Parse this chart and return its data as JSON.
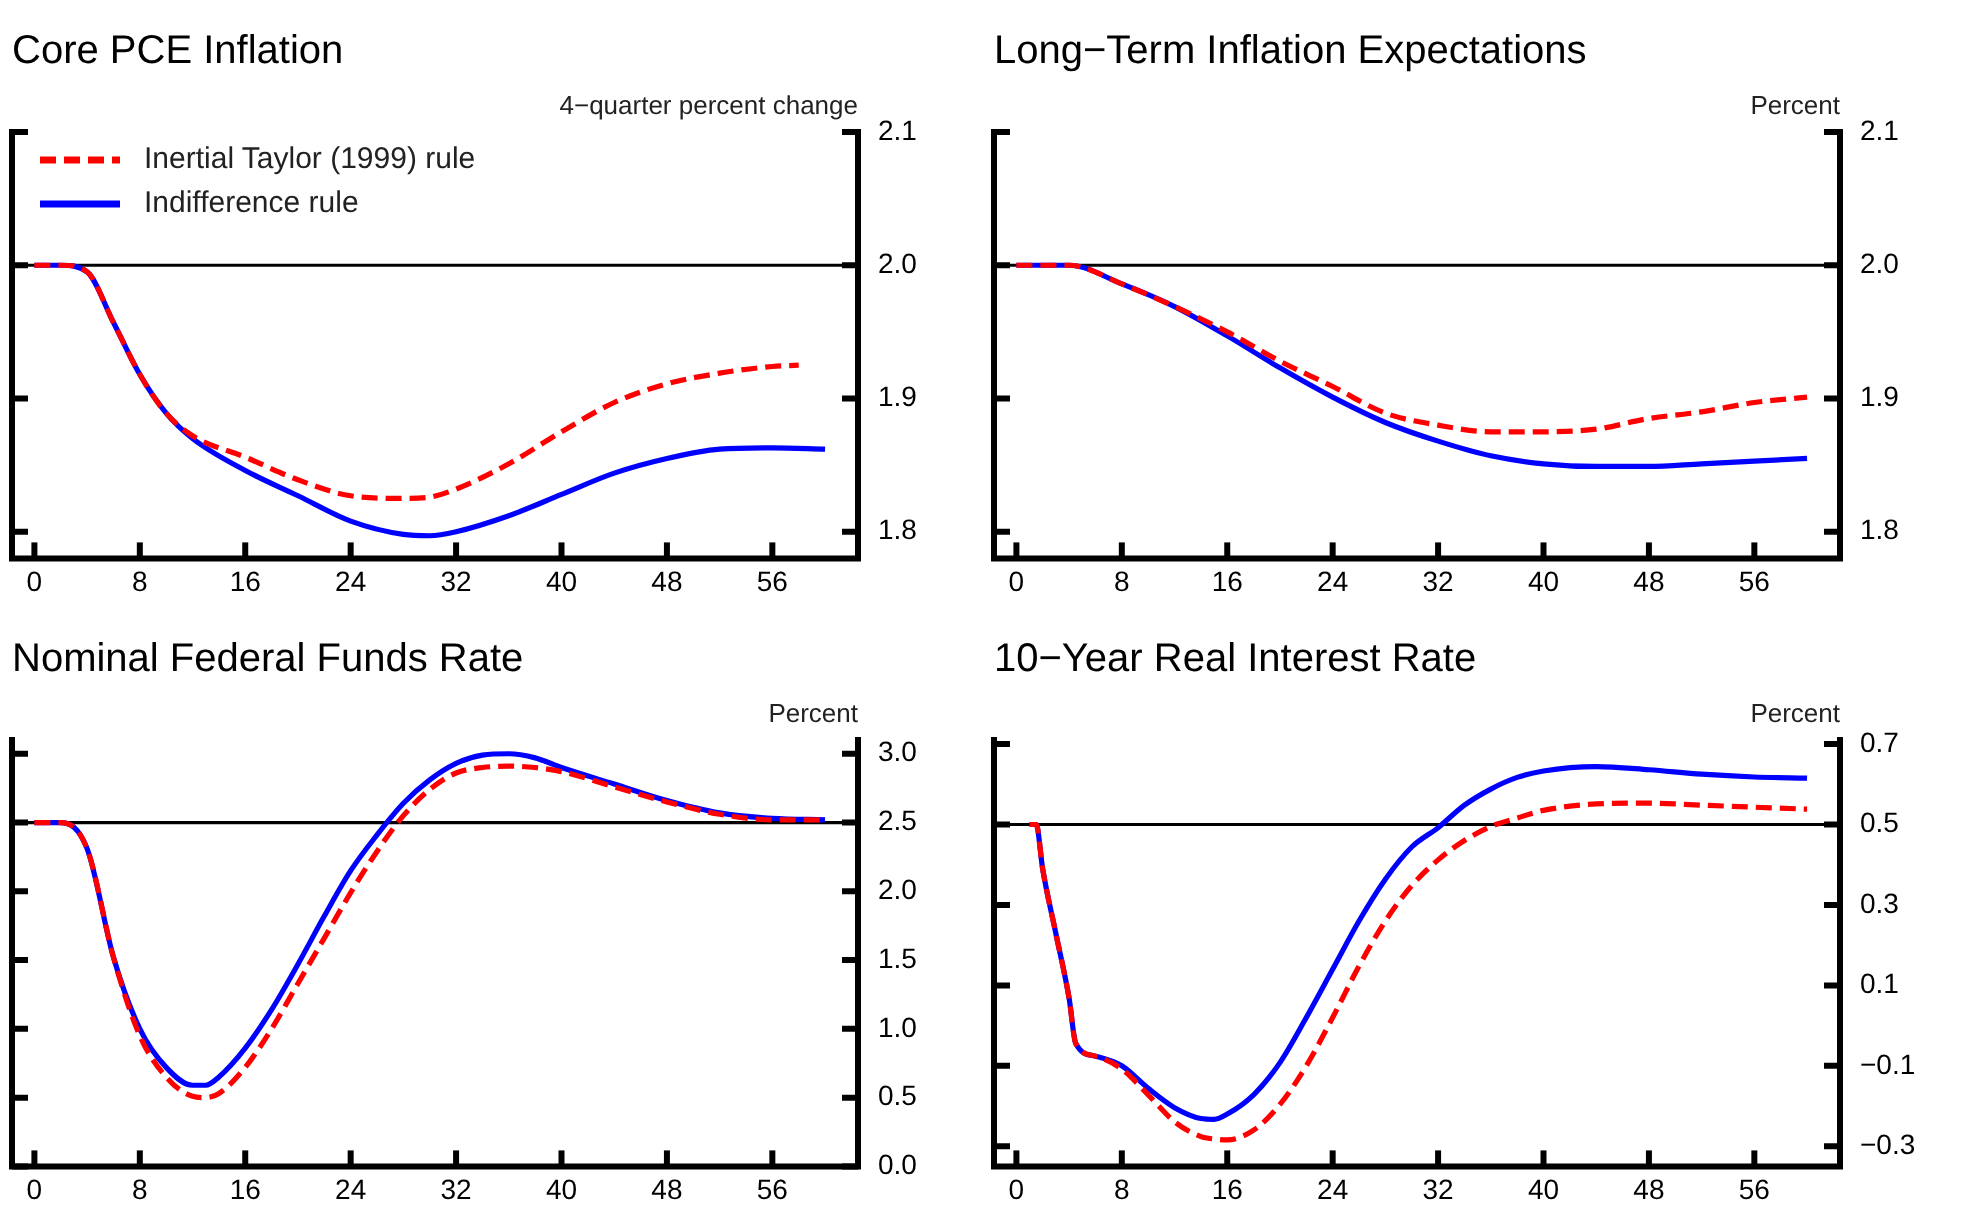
{
  "chart_data": [
    {
      "type": "line",
      "title": "Core PCE Inflation",
      "ylabel": "4−quarter percent change",
      "legend": "top left",
      "marker": "none",
      "xlim": [
        -1.7,
        62.5
      ],
      "xticks": [
        0,
        8,
        16,
        24,
        32,
        40,
        48,
        56
      ],
      "ylim": [
        1.78,
        2.1
      ],
      "yticks": [
        {
          "value": 1.8,
          "label": "1.8"
        },
        {
          "value": 1.9,
          "label": "1.9"
        },
        {
          "value": 2.0,
          "label": "2.0"
        },
        {
          "value": 2.1,
          "label": "2.1"
        }
      ],
      "ref_lines": [
        {
          "axis": "y",
          "value": 2.0,
          "color": "#000000"
        }
      ],
      "series": [
        {
          "name": "Inertial Taylor (1999) rule",
          "color": "#ff0000",
          "line_style": "dashed",
          "x": [
            0,
            2,
            4,
            6,
            8,
            10,
            12,
            16,
            20,
            24,
            28,
            30,
            32,
            36,
            40,
            44,
            48,
            52,
            56,
            58
          ],
          "values": [
            2,
            2,
            1.995,
            1.957,
            1.918,
            1.889,
            1.872,
            1.856,
            1.839,
            1.827,
            1.825,
            1.826,
            1.832,
            1.851,
            1.875,
            1.897,
            1.911,
            1.919,
            1.924,
            1.925
          ]
        },
        {
          "name": "Indifference rule",
          "color": "#0000ff",
          "line_style": "solid",
          "x": [
            0,
            2,
            4,
            6,
            8,
            10,
            12,
            16,
            20,
            24,
            28,
            30,
            32,
            36,
            40,
            44,
            48,
            52,
            56,
            60
          ],
          "values": [
            2,
            2,
            1.995,
            1.957,
            1.918,
            1.889,
            1.87,
            1.846,
            1.827,
            1.808,
            1.798,
            1.797,
            1.8,
            1.812,
            1.828,
            1.844,
            1.855,
            1.862,
            1.863,
            1.862
          ]
        }
      ]
    },
    {
      "type": "line",
      "title": "Long−Term Inflation Expectations",
      "ylabel": "Percent",
      "marker": "none",
      "xlim": [
        -1.7,
        62.5
      ],
      "xticks": [
        0,
        8,
        16,
        24,
        32,
        40,
        48,
        56
      ],
      "ylim": [
        1.78,
        2.1
      ],
      "yticks": [
        {
          "value": 1.8,
          "label": "1.8"
        },
        {
          "value": 1.9,
          "label": "1.9"
        },
        {
          "value": 2.0,
          "label": "2.0"
        },
        {
          "value": 2.1,
          "label": "2.1"
        }
      ],
      "ref_lines": [
        {
          "axis": "y",
          "value": 2.0,
          "color": "#000000"
        }
      ],
      "series": [
        {
          "color": "#ff0000",
          "line_style": "dashed",
          "x": [
            0,
            4,
            8,
            12,
            16,
            20,
            24,
            28,
            32,
            36,
            40,
            44,
            48,
            52,
            56,
            60
          ],
          "values": [
            2,
            2,
            1.986,
            1.969,
            1.95,
            1.928,
            1.909,
            1.889,
            1.88,
            1.875,
            1.875,
            1.877,
            1.885,
            1.89,
            1.897,
            1.901
          ]
        },
        {
          "color": "#0000ff",
          "line_style": "solid",
          "x": [
            0,
            4,
            8,
            12,
            16,
            20,
            24,
            28,
            32,
            36,
            40,
            44,
            48,
            52,
            56,
            60
          ],
          "values": [
            2,
            2,
            1.986,
            1.969,
            1.947,
            1.923,
            1.901,
            1.882,
            1.868,
            1.857,
            1.851,
            1.849,
            1.849,
            1.851,
            1.853,
            1.855
          ]
        }
      ]
    },
    {
      "type": "line",
      "title": "Nominal Federal Funds Rate",
      "ylabel": "Percent",
      "marker": "none",
      "xlim": [
        -1.7,
        62.5
      ],
      "xticks": [
        0,
        8,
        16,
        24,
        32,
        40,
        48,
        56
      ],
      "ylim": [
        0,
        3.1
      ],
      "yticks": [
        {
          "value": 0,
          "label": "0.0"
        },
        {
          "value": 0.5,
          "label": "0.5"
        },
        {
          "value": 1,
          "label": "1.0"
        },
        {
          "value": 1.5,
          "label": "1.5"
        },
        {
          "value": 2,
          "label": "2.0"
        },
        {
          "value": 2.5,
          "label": "2.5"
        },
        {
          "value": 3,
          "label": "3.0"
        }
      ],
      "ref_lines": [
        {
          "axis": "y",
          "value": 2.5,
          "color": "#000000"
        }
      ],
      "series": [
        {
          "color": "#ff0000",
          "line_style": "dashed",
          "x": [
            0,
            2,
            4,
            6,
            8,
            10,
            12,
            13,
            14,
            16,
            18,
            20,
            22,
            24,
            26,
            28,
            30,
            32,
            34,
            36,
            38,
            40,
            44,
            48,
            52,
            56,
            60
          ],
          "values": [
            2.5,
            2.5,
            2.31,
            1.52,
            0.95,
            0.65,
            0.51,
            0.5,
            0.53,
            0.72,
            1.0,
            1.33,
            1.66,
            1.99,
            2.29,
            2.55,
            2.74,
            2.86,
            2.9,
            2.91,
            2.9,
            2.87,
            2.76,
            2.65,
            2.56,
            2.52,
            2.52
          ]
        },
        {
          "color": "#0000ff",
          "line_style": "solid",
          "x": [
            0,
            2,
            4,
            6,
            8,
            10,
            12,
            13,
            14,
            16,
            18,
            20,
            22,
            24,
            26,
            28,
            30,
            32,
            34,
            36,
            38,
            40,
            44,
            48,
            52,
            56,
            60
          ],
          "values": [
            2.5,
            2.5,
            2.31,
            1.52,
            1.0,
            0.72,
            0.59,
            0.59,
            0.65,
            0.86,
            1.14,
            1.47,
            1.82,
            2.15,
            2.41,
            2.64,
            2.81,
            2.93,
            2.99,
            3.0,
            2.97,
            2.9,
            2.78,
            2.66,
            2.57,
            2.53,
            2.52
          ]
        }
      ]
    },
    {
      "type": "line",
      "title": "10−Year Real Interest Rate",
      "ylabel": "Percent",
      "marker": "none",
      "xlim": [
        -1.7,
        62.5
      ],
      "xticks": [
        0,
        8,
        16,
        24,
        32,
        40,
        48,
        56
      ],
      "ylim": [
        -0.35,
        0.71
      ],
      "yticks": [
        {
          "value": -0.3,
          "label": "−0.3"
        },
        {
          "value": -0.1,
          "label": "−0.1"
        },
        0.1,
        0.3,
        0.5,
        0.7
      ],
      "ref_lines": [
        {
          "axis": "y",
          "value": 0.5,
          "color": "#000000"
        }
      ],
      "series": [
        {
          "color": "#ff0000",
          "line_style": "dashed",
          "x": [
            1,
            1.5,
            2,
            3,
            4,
            4.5,
            6,
            8,
            10,
            12,
            14,
            15,
            16,
            18,
            20,
            22,
            24,
            26,
            28,
            30,
            32,
            34,
            36,
            38,
            40,
            44,
            48,
            52,
            56,
            60
          ],
          "values": [
            0.5,
            0.5,
            0.388,
            0.228,
            0.068,
            -0.044,
            -0.076,
            -0.108,
            -0.172,
            -0.239,
            -0.276,
            -0.282,
            -0.284,
            -0.26,
            -0.196,
            -0.1,
            0.02,
            0.148,
            0.26,
            0.348,
            0.412,
            0.46,
            0.495,
            0.516,
            0.535,
            0.551,
            0.553,
            0.548,
            0.543,
            0.538
          ]
        },
        {
          "color": "#0000ff",
          "line_style": "solid",
          "x": [
            1,
            1.5,
            2,
            3,
            4,
            4.5,
            6,
            8,
            10,
            12,
            14,
            15,
            16,
            18,
            20,
            22,
            24,
            26,
            28,
            30,
            32,
            34,
            36,
            38,
            40,
            44,
            48,
            52,
            56,
            60
          ],
          "values": [
            0.5,
            0.5,
            0.388,
            0.228,
            0.068,
            -0.044,
            -0.076,
            -0.1,
            -0.156,
            -0.204,
            -0.231,
            -0.233,
            -0.22,
            -0.172,
            -0.092,
            0.02,
            0.14,
            0.26,
            0.364,
            0.444,
            0.492,
            0.548,
            0.588,
            0.617,
            0.633,
            0.644,
            0.636,
            0.625,
            0.618,
            0.615
          ]
        }
      ]
    }
  ]
}
